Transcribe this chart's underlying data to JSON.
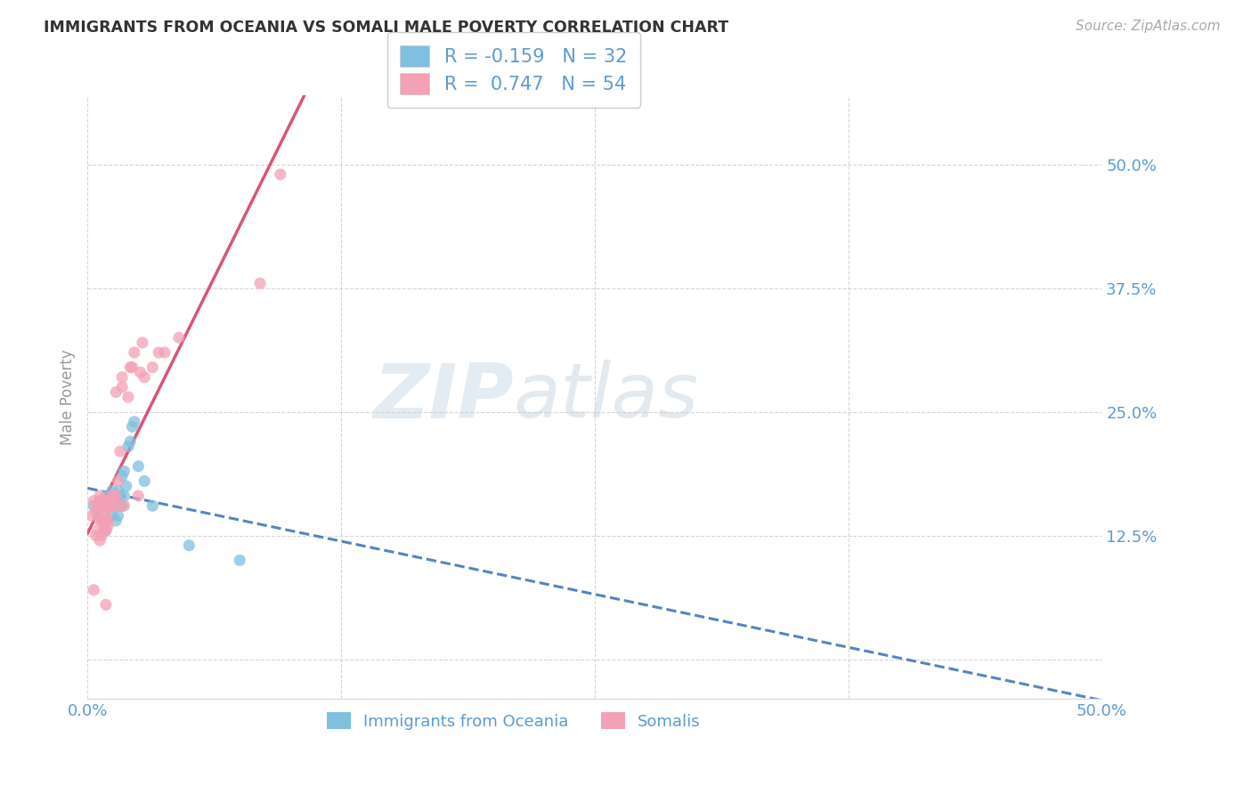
{
  "title": "IMMIGRANTS FROM OCEANIA VS SOMALI MALE POVERTY CORRELATION CHART",
  "source_text": "Source: ZipAtlas.com",
  "ylabel": "Male Poverty",
  "xlim": [
    0.0,
    0.5
  ],
  "ylim": [
    -0.04,
    0.57
  ],
  "ytick_positions": [
    0.0,
    0.125,
    0.25,
    0.375,
    0.5
  ],
  "xtick_positions": [
    0.0,
    0.125,
    0.25,
    0.375,
    0.5
  ],
  "ytick_labels": [
    "",
    "12.5%",
    "25.0%",
    "37.5%",
    "50.0%"
  ],
  "xtick_labels": [
    "0.0%",
    "",
    "",
    "",
    "50.0%"
  ],
  "blue_color": "#7fbfdf",
  "pink_color": "#f4a0b5",
  "line_blue": "#4477bb",
  "line_pink": "#d44466",
  "axis_label_color": "#5b9bd5",
  "title_color": "#333333",
  "watermark_color": "#ccdde8",
  "oceania_x": [
    0.003,
    0.005,
    0.006,
    0.008,
    0.009,
    0.009,
    0.01,
    0.01,
    0.011,
    0.012,
    0.012,
    0.013,
    0.014,
    0.014,
    0.015,
    0.015,
    0.016,
    0.016,
    0.017,
    0.017,
    0.018,
    0.018,
    0.019,
    0.02,
    0.021,
    0.022,
    0.023,
    0.025,
    0.028,
    0.032,
    0.05,
    0.075
  ],
  "oceania_y": [
    0.155,
    0.145,
    0.16,
    0.14,
    0.13,
    0.165,
    0.14,
    0.155,
    0.16,
    0.145,
    0.17,
    0.155,
    0.14,
    0.16,
    0.145,
    0.17,
    0.155,
    0.165,
    0.155,
    0.185,
    0.165,
    0.19,
    0.175,
    0.215,
    0.22,
    0.235,
    0.24,
    0.195,
    0.18,
    0.155,
    0.115,
    0.1
  ],
  "somali_x": [
    0.002,
    0.003,
    0.003,
    0.004,
    0.004,
    0.005,
    0.005,
    0.006,
    0.006,
    0.006,
    0.006,
    0.007,
    0.007,
    0.007,
    0.007,
    0.008,
    0.008,
    0.008,
    0.008,
    0.009,
    0.009,
    0.009,
    0.009,
    0.009,
    0.009,
    0.01,
    0.01,
    0.01,
    0.011,
    0.012,
    0.012,
    0.013,
    0.014,
    0.014,
    0.015,
    0.015,
    0.016,
    0.017,
    0.017,
    0.018,
    0.02,
    0.021,
    0.022,
    0.023,
    0.025,
    0.026,
    0.027,
    0.028,
    0.032,
    0.035,
    0.038,
    0.045,
    0.085,
    0.095
  ],
  "somali_y": [
    0.145,
    0.16,
    0.07,
    0.125,
    0.15,
    0.13,
    0.155,
    0.12,
    0.14,
    0.155,
    0.165,
    0.125,
    0.14,
    0.155,
    0.16,
    0.13,
    0.14,
    0.15,
    0.16,
    0.13,
    0.14,
    0.145,
    0.155,
    0.16,
    0.055,
    0.135,
    0.14,
    0.155,
    0.155,
    0.155,
    0.165,
    0.165,
    0.165,
    0.27,
    0.155,
    0.18,
    0.21,
    0.285,
    0.275,
    0.155,
    0.265,
    0.295,
    0.295,
    0.31,
    0.165,
    0.29,
    0.32,
    0.285,
    0.295,
    0.31,
    0.31,
    0.325,
    0.38,
    0.49
  ],
  "legend_text1": "R = -0.159   N = 32",
  "legend_text2": "R =  0.747   N = 54",
  "bottom_legend1": "Immigrants from Oceania",
  "bottom_legend2": "Somalis"
}
